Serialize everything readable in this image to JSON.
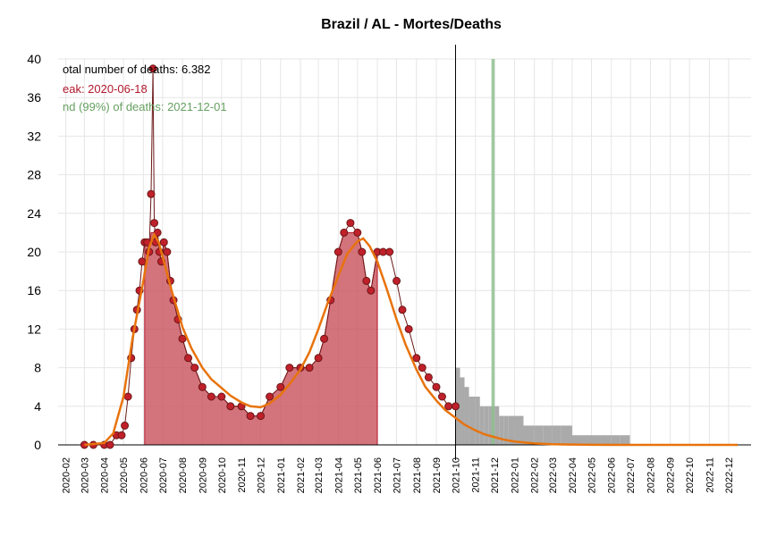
{
  "chart_data": {
    "type": "line",
    "title": "Brazil / AL - Mortes/Deaths",
    "xlabel": "",
    "ylabel": "",
    "ylim": [
      0,
      40
    ],
    "yticks": [
      0,
      4,
      8,
      12,
      16,
      20,
      24,
      28,
      32,
      36,
      40
    ],
    "xlim": [
      "2020-01-20",
      "2023-01-05"
    ],
    "x_tick_labels": [
      "2020-02",
      "2020-03",
      "2020-04",
      "2020-05",
      "2020-06",
      "2020-07",
      "2020-08",
      "2020-09",
      "2020-10",
      "2020-11",
      "2020-12",
      "2021-01",
      "2021-02",
      "2021-03",
      "2021-04",
      "2021-05",
      "2021-06",
      "2021-07",
      "2021-08",
      "2021-09",
      "2021-10",
      "2021-11",
      "2021-12",
      "2022-01",
      "2022-02",
      "2022-03",
      "2022-04",
      "2022-05",
      "2022-06",
      "2022-07",
      "2022-08",
      "2022-09",
      "2022-10",
      "2022-11",
      "2022-12"
    ],
    "grid": true,
    "annotations": {
      "total": "otal number of deaths: 6.382",
      "peak": "eak: 2020-06-18",
      "end": "nd (99%) of deaths: 2021-12-01"
    },
    "annotation_colors": {
      "total": "#000000",
      "peak": "#b2182b",
      "end": "#66a061"
    },
    "today_line": "2021-10-01",
    "end_band": [
      "2021-11-26",
      "2021-12-01"
    ],
    "colors": {
      "fitted": "#e8730c",
      "area": "#c8505a",
      "points": "#c0202a",
      "points_dark": "#6b1818",
      "forecast": "#aaaaaa",
      "end_band": "#8fc08f"
    },
    "series": [
      {
        "name": "",
        "kind": "daily_deaths",
        "x": [
          "2020-03-01",
          "2020-03-15",
          "2020-04-01",
          "2020-04-10",
          "2020-04-20",
          "2020-04-28",
          "2020-05-03",
          "2020-05-08",
          "2020-05-13",
          "2020-05-18",
          "2020-05-22",
          "2020-05-26",
          "2020-05-30",
          "2020-06-03",
          "2020-06-07",
          "2020-06-10",
          "2020-06-13",
          "2020-06-16",
          "2020-06-18",
          "2020-06-20",
          "2020-06-23",
          "2020-06-26",
          "2020-06-29",
          "2020-07-03",
          "2020-07-08",
          "2020-07-13",
          "2020-07-18",
          "2020-07-25",
          "2020-08-01",
          "2020-08-10",
          "2020-08-20",
          "2020-09-01",
          "2020-09-15",
          "2020-10-01",
          "2020-10-15",
          "2020-11-01",
          "2020-11-15",
          "2020-12-01",
          "2020-12-15",
          "2021-01-01",
          "2021-01-15",
          "2021-02-01",
          "2021-02-15",
          "2021-03-01",
          "2021-03-10",
          "2021-03-20",
          "2021-04-01",
          "2021-04-10",
          "2021-04-20",
          "2021-05-01",
          "2021-05-08",
          "2021-05-15",
          "2021-05-22",
          "2021-06-01",
          "2021-06-10",
          "2021-06-20",
          "2021-07-01",
          "2021-07-10",
          "2021-07-20",
          "2021-08-01",
          "2021-08-10",
          "2021-08-20",
          "2021-09-01",
          "2021-09-10",
          "2021-09-20",
          "2021-10-01"
        ],
        "y": [
          0,
          0,
          0,
          0,
          1,
          1,
          2,
          5,
          9,
          12,
          14,
          16,
          19,
          21,
          21,
          20,
          26,
          39,
          23,
          21,
          22,
          20,
          19,
          21,
          20,
          17,
          15,
          13,
          11,
          9,
          8,
          6,
          5,
          5,
          4,
          4,
          3,
          3,
          5,
          6,
          8,
          8,
          8,
          9,
          11,
          15,
          20,
          22,
          23,
          22,
          20,
          17,
          16,
          20,
          20,
          20,
          17,
          14,
          12,
          9,
          8,
          7,
          6,
          5,
          4,
          4
        ]
      },
      {
        "name": "",
        "kind": "fitted",
        "x": [
          "2020-03-01",
          "2020-04-01",
          "2020-04-15",
          "2020-05-01",
          "2020-05-15",
          "2020-06-01",
          "2020-06-10",
          "2020-06-18",
          "2020-06-25",
          "2020-07-05",
          "2020-07-15",
          "2020-08-01",
          "2020-08-15",
          "2020-09-01",
          "2020-09-15",
          "2020-10-01",
          "2020-10-15",
          "2020-11-01",
          "2020-11-15",
          "2020-12-01",
          "2020-12-15",
          "2021-01-01",
          "2021-01-15",
          "2021-02-01",
          "2021-02-15",
          "2021-03-01",
          "2021-03-15",
          "2021-04-01",
          "2021-04-15",
          "2021-05-01",
          "2021-05-10",
          "2021-05-20",
          "2021-06-01",
          "2021-06-15",
          "2021-07-01",
          "2021-07-15",
          "2021-08-01",
          "2021-08-15",
          "2021-09-01",
          "2021-09-15",
          "2021-10-01",
          "2021-10-15",
          "2021-11-01",
          "2021-11-15",
          "2021-12-01",
          "2021-12-15",
          "2022-01-01",
          "2022-02-01",
          "2022-03-01",
          "2022-04-01",
          "2022-05-01",
          "2022-06-01",
          "2022-07-01",
          "2022-09-01",
          "2022-12-15"
        ],
        "y": [
          0,
          0.2,
          1.2,
          5,
          11,
          17,
          20.5,
          21.8,
          21,
          18.5,
          16,
          12.2,
          10,
          8,
          6.8,
          5.9,
          5.1,
          4.4,
          4,
          3.9,
          4.3,
          5.2,
          6.3,
          7.8,
          9.6,
          12,
          14.6,
          17.5,
          19.8,
          21.1,
          21.4,
          20.6,
          19,
          16.3,
          13,
          10.4,
          7.8,
          6,
          4.6,
          3.6,
          2.8,
          2.1,
          1.5,
          1.1,
          0.8,
          0.55,
          0.35,
          0.15,
          0.07,
          0.03,
          0.01,
          0,
          0,
          0,
          0
        ]
      },
      {
        "name": "",
        "kind": "forecast",
        "x": [
          "2021-10-01",
          "2021-10-08",
          "2021-10-15",
          "2021-10-22",
          "2021-11-01",
          "2021-11-08",
          "2021-11-15",
          "2021-11-22",
          "2021-12-01",
          "2021-12-08",
          "2021-12-15",
          "2021-12-22",
          "2022-01-01",
          "2022-01-15",
          "2022-02-01",
          "2022-02-15",
          "2022-03-01",
          "2022-03-15",
          "2022-04-01",
          "2022-04-15",
          "2022-05-01",
          "2022-05-15",
          "2022-06-01",
          "2022-06-15",
          "2022-06-30"
        ],
        "y": [
          8,
          7,
          6,
          5,
          5,
          4,
          4,
          4,
          4,
          3,
          3,
          3,
          3,
          2,
          2,
          2,
          2,
          2,
          1,
          1,
          1,
          1,
          1,
          1,
          1
        ]
      }
    ]
  }
}
